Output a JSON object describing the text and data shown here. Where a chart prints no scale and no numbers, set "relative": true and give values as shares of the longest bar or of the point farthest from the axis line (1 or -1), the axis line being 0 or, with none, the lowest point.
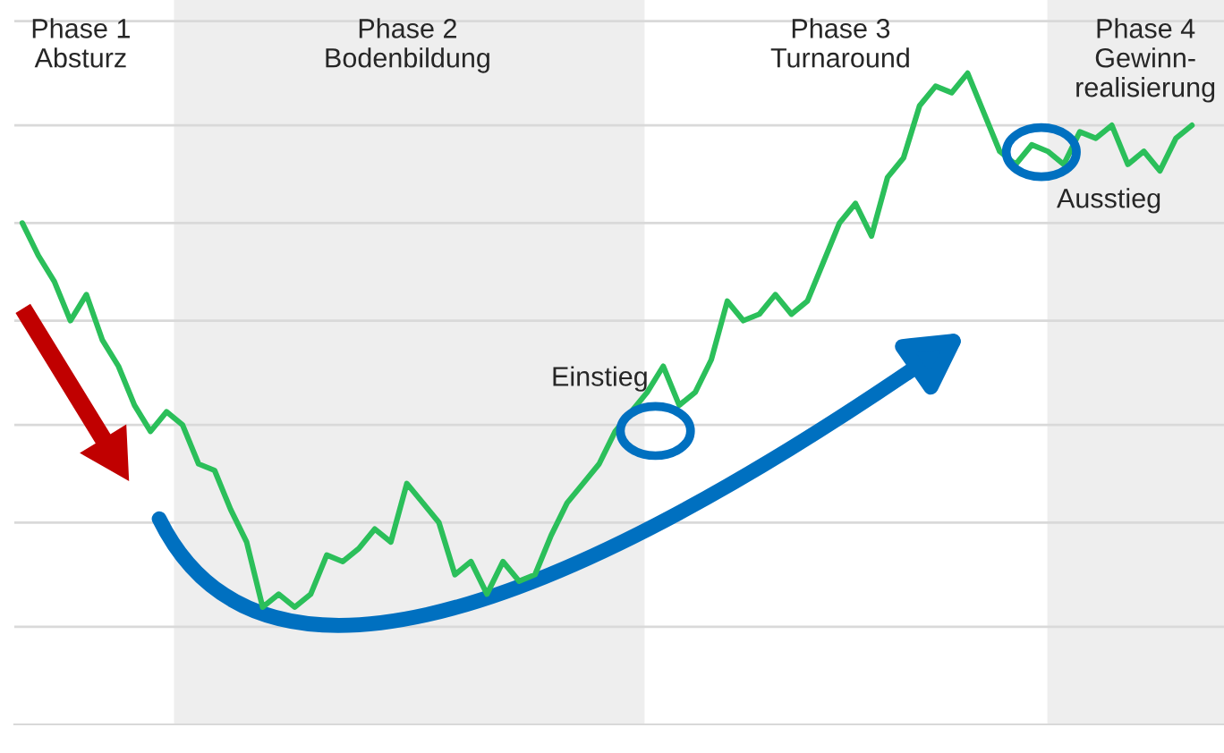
{
  "chart_data": {
    "type": "line",
    "relative": true,
    "categories": [
      null,
      null,
      null,
      null,
      null,
      null,
      null,
      null,
      null,
      null,
      null,
      null,
      null,
      null,
      null,
      null,
      null,
      null,
      null,
      null,
      null,
      null,
      null,
      null,
      null,
      null,
      null,
      null,
      null,
      null,
      null,
      null,
      null,
      null,
      null,
      null,
      null,
      null,
      null,
      null,
      null,
      null,
      null,
      null,
      null,
      null,
      null,
      null,
      null,
      null,
      null,
      null,
      null,
      null,
      null,
      null,
      null,
      null,
      null,
      null,
      null,
      null,
      null,
      null,
      null,
      null,
      null,
      null,
      null,
      null,
      null,
      null,
      null,
      null
    ],
    "series": [
      {
        "color": "#2bbf5a",
        "values": [
          0.77,
          0.72,
          0.68,
          0.62,
          0.66,
          0.59,
          0.55,
          0.49,
          0.45,
          0.48,
          0.46,
          0.4,
          0.39,
          0.33,
          0.28,
          0.18,
          0.2,
          0.18,
          0.2,
          0.26,
          0.25,
          0.27,
          0.3,
          0.28,
          0.37,
          0.34,
          0.31,
          0.23,
          0.25,
          0.2,
          0.25,
          0.22,
          0.23,
          0.29,
          0.34,
          0.37,
          0.4,
          0.45,
          0.48,
          0.51,
          0.55,
          0.49,
          0.51,
          0.56,
          0.65,
          0.62,
          0.63,
          0.66,
          0.63,
          0.65,
          0.71,
          0.77,
          0.8,
          0.75,
          0.84,
          0.87,
          0.95,
          0.98,
          0.97,
          1,
          0.94,
          0.88,
          0.86,
          0.89,
          0.88,
          0.86,
          0.91,
          0.9,
          0.92,
          0.86,
          0.88,
          0.85,
          0.9,
          0.92
        ]
      }
    ],
    "ref_lines": [
      {
        "axis": "y",
        "value": 0.15,
        "color": "#d9d9d9"
      },
      {
        "axis": "y",
        "value": 0.31,
        "color": "#d9d9d9"
      },
      {
        "axis": "y",
        "value": 0.46,
        "color": "#d9d9d9"
      },
      {
        "axis": "y",
        "value": 0.62,
        "color": "#d9d9d9"
      },
      {
        "axis": "y",
        "value": 0.77,
        "color": "#d9d9d9"
      },
      {
        "axis": "y",
        "value": 0.92,
        "color": "#d9d9d9"
      },
      {
        "axis": "y",
        "value": 1.08,
        "color": "#d9d9d9"
      }
    ],
    "annotations": [
      "Phase 1\nAbsturz",
      "Phase 2\nBodenbildung",
      "Phase 3\nTurnaround",
      "Phase 4\nGewinn-\nrealisierung",
      "Einstieg",
      "Ausstieg"
    ],
    "line_style": "solid",
    "marker": "none",
    "legend": false
  }
}
